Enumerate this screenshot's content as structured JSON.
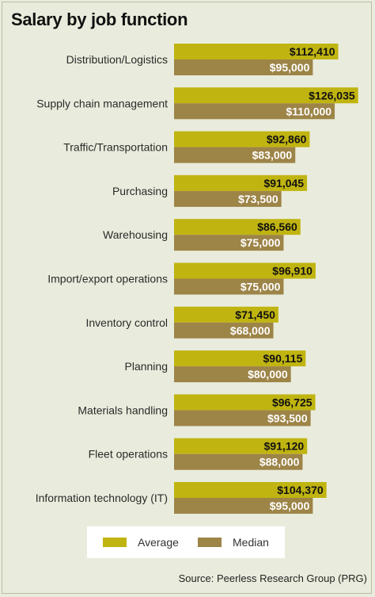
{
  "title": "Salary by job function",
  "source": "Source: Peerless Research Group (PRG)",
  "colors": {
    "average": "#c0b411",
    "median": "#9d8447",
    "background": "#e9ecdc"
  },
  "legend": {
    "average_label": "Average",
    "median_label": "Median"
  },
  "chart_data": {
    "type": "bar",
    "orientation": "horizontal",
    "title": "Salary by job function",
    "categories": [
      "Distribution/Logistics",
      "Supply chain management",
      "Traffic/Transportation",
      "Purchasing",
      "Warehousing",
      "Import/export operations",
      "Inventory control",
      "Planning",
      "Materials handling",
      "Fleet operations",
      "Information technology (IT)"
    ],
    "series": [
      {
        "name": "Average",
        "values": [
          112410,
          126035,
          92860,
          91045,
          86560,
          96910,
          71450,
          90115,
          96725,
          91120,
          104370
        ],
        "labels": [
          "$112,410",
          "$126,035",
          "$92,860",
          "$91,045",
          "$86,560",
          "$96,910",
          "$71,450",
          "$90,115",
          "$96,725",
          "$91,120",
          "$104,370"
        ]
      },
      {
        "name": "Median",
        "values": [
          95000,
          110000,
          83000,
          73500,
          75000,
          75000,
          68000,
          80000,
          93500,
          88000,
          95000
        ],
        "labels": [
          "$95,000",
          "$110,000",
          "$83,000",
          "$73,500",
          "$75,000",
          "$75,000",
          "$68,000",
          "$80,000",
          "$93,500",
          "$88,000",
          "$95,000"
        ]
      }
    ],
    "xlim": [
      0,
      130000
    ],
    "grid": false,
    "legend_position": "bottom-center"
  }
}
